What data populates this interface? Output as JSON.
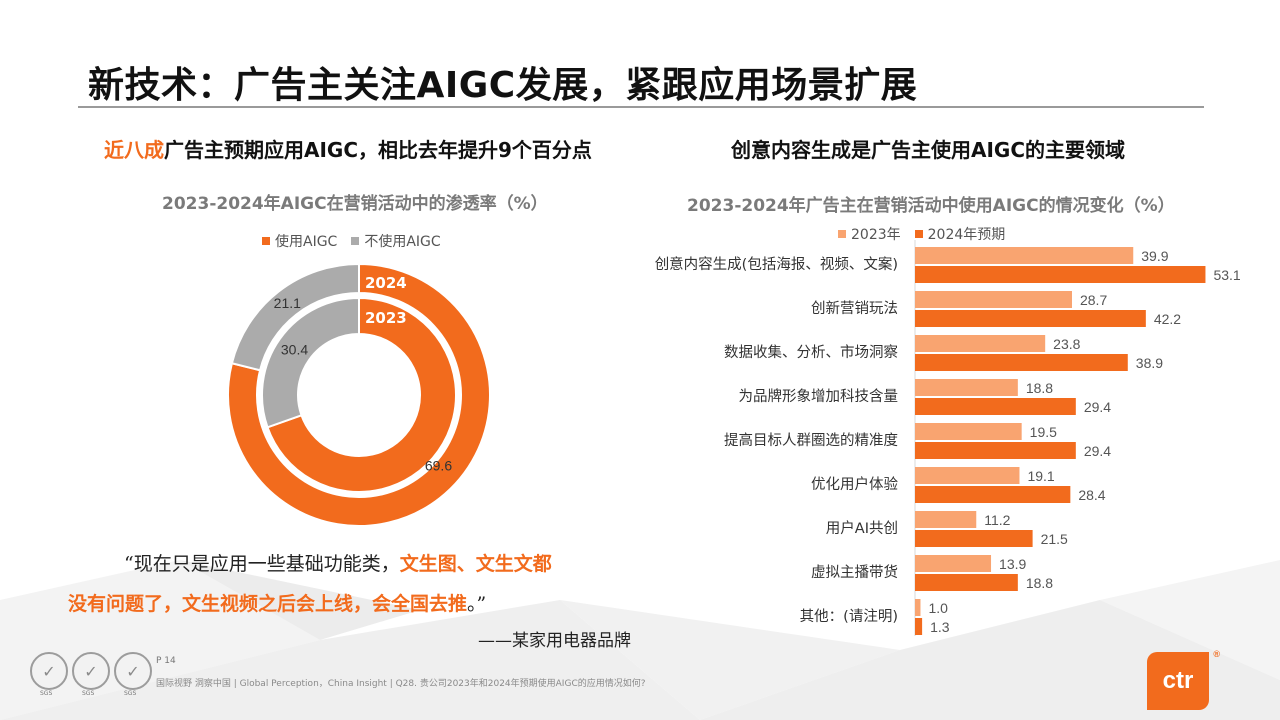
{
  "title": "新技术：广告主关注AIGC发展，紧跟应用场景扩展",
  "left": {
    "subhead_highlight": "近八成",
    "subhead_rest": "广告主预期应用AIGC，相比去年提升9个百分点",
    "quote_line1_plain": "“现在只是应用一些基础功能类，",
    "quote_line1_highlight": "文生图、文生文都",
    "quote_line2_highlight": "没有问题了，文生视频之后会上线，会全国去推",
    "quote_line2_end": "。”",
    "attribution": "——某家用电器品牌"
  },
  "right": {
    "subhead": "创意内容生成是广告主使用AIGC的主要领域"
  },
  "chart_data": [
    {
      "type": "pie",
      "subtype": "donut",
      "title": "2023-2024年AIGC在营销活动中的渗透率（%）",
      "legend": [
        "使用AIGC",
        "不使用AIGC"
      ],
      "rings": [
        {
          "name": "2024",
          "position": "outer",
          "values": {
            "使用AIGC": 78.9,
            "不使用AIGC": 21.1
          }
        },
        {
          "name": "2023",
          "position": "inner",
          "values": {
            "使用AIGC": 69.6,
            "不使用AIGC": 30.4
          }
        }
      ],
      "colors": {
        "使用AIGC": "#f26b1d",
        "不使用AIGC": "#ababab"
      }
    },
    {
      "type": "bar",
      "orientation": "horizontal",
      "title": "2023-2024年广告主在营销活动中使用AIGC的情况变化（%）",
      "categories": [
        "创意内容生成(包括海报、视频、文案)",
        "创新营销玩法",
        "数据收集、分析、市场洞察",
        "为品牌形象增加科技含量",
        "提高目标人群圈选的精准度",
        "优化用户体验",
        "用户AI共创",
        "虚拟主播带货",
        "其他：(请注明)"
      ],
      "series": [
        {
          "name": "2023年",
          "color": "#f9a470",
          "values": [
            39.9,
            28.7,
            23.8,
            18.8,
            19.5,
            19.1,
            11.2,
            13.9,
            1.0
          ]
        },
        {
          "name": "2024年预期",
          "color": "#f26b1d",
          "values": [
            53.1,
            42.2,
            38.9,
            29.4,
            29.4,
            28.4,
            21.5,
            18.8,
            1.3
          ]
        }
      ],
      "xlim": [
        0,
        55
      ]
    }
  ],
  "footer": {
    "page": "P 14",
    "text": "国际视野  洞察中国 |  Global Perception，China Insight  |    Q28. 贵公司2023年和2024年预期使用AIGC的应用情况如何?",
    "badge_label": "SGS",
    "logo": "ctr",
    "logo_mark": "®"
  }
}
